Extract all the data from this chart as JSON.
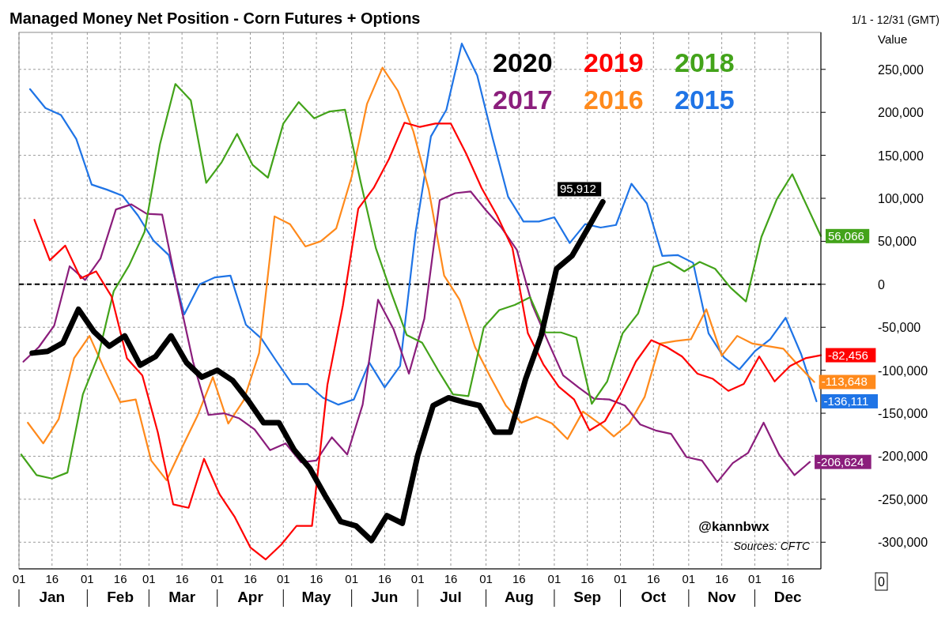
{
  "chart_data": {
    "type": "line",
    "title": "Managed Money Net Position - Corn Futures + Options",
    "ylabel": "Value",
    "annotations": [
      "1/1 - 12/31 (GMT)",
      "@kannbwx",
      "Sources: CFTC",
      "0"
    ],
    "xlim": [
      "--01-01",
      "--12-31"
    ],
    "xticks": [
      {
        "value": "--01-01",
        "label": "01"
      },
      {
        "value": "--01-16",
        "label": "16\nJan"
      },
      {
        "value": "--02-01",
        "label": "01"
      },
      {
        "value": "--02-16",
        "label": "16\nFeb"
      },
      {
        "value": "--03-01",
        "label": "01"
      },
      {
        "value": "--03-16",
        "label": "16\nMar"
      },
      {
        "value": "--04-01",
        "label": "01"
      },
      {
        "value": "--04-16",
        "label": "16\nApr"
      },
      {
        "value": "--05-01",
        "label": "01"
      },
      {
        "value": "--05-16",
        "label": "16\nMay"
      },
      {
        "value": "--06-01",
        "label": "01"
      },
      {
        "value": "--06-16",
        "label": "16\nJun"
      },
      {
        "value": "--07-01",
        "label": "01"
      },
      {
        "value": "--07-16",
        "label": "16\nJul"
      },
      {
        "value": "--08-01",
        "label": "01"
      },
      {
        "value": "--08-16",
        "label": "16\nAug"
      },
      {
        "value": "--09-01",
        "label": "01"
      },
      {
        "value": "--09-16",
        "label": "16\nSep"
      },
      {
        "value": "--10-01",
        "label": "01"
      },
      {
        "value": "--10-16",
        "label": "16\nOct"
      },
      {
        "value": "--11-01",
        "label": "01"
      },
      {
        "value": "--11-16",
        "label": "16\nNov"
      },
      {
        "value": "--12-01",
        "label": "01"
      },
      {
        "value": "--12-16",
        "label": "16\nDec"
      }
    ],
    "ylim": [
      -331000,
      293000
    ],
    "yticks": [
      {
        "value": -300000,
        "label": "-300,000"
      },
      {
        "value": -250000,
        "label": "-250,000"
      },
      {
        "value": -200000,
        "label": "-200,000"
      },
      {
        "value": -150000,
        "label": "-150,000"
      },
      {
        "value": -100000,
        "label": "-100,000"
      },
      {
        "value": -50000,
        "label": "-50,000"
      },
      0,
      {
        "value": 50000,
        "label": "50,000"
      },
      {
        "value": 100000,
        "label": "100,000"
      },
      {
        "value": 150000,
        "label": "150,000"
      },
      {
        "value": 200000,
        "label": "200,000"
      },
      {
        "value": 250000,
        "label": "250,000"
      }
    ],
    "grid": true,
    "legend": "top right",
    "ref_lines": [
      {
        "axis": "y",
        "value": 0,
        "color": "#000000",
        "line_style": "dashed"
      }
    ],
    "series": [
      {
        "name": "2020",
        "color": "#000000",
        "x": [
          "--01-07",
          "--01-14",
          "--01-21",
          "--01-28",
          "--02-04",
          "--02-11",
          "--02-18",
          "--02-25",
          "--03-04",
          "--03-11",
          "--03-18",
          "--03-25",
          "--04-01",
          "--04-08",
          "--04-15",
          "--04-22",
          "--04-29",
          "--05-06",
          "--05-13",
          "--05-20",
          "--05-27",
          "--06-03",
          "--06-10",
          "--06-17",
          "--06-24",
          "--07-01",
          "--07-08",
          "--07-15",
          "--07-22",
          "--07-29",
          "--08-05",
          "--08-12",
          "--08-19",
          "--08-26",
          "--09-02",
          "--09-09",
          "--09-16",
          "--09-23"
        ],
        "values": [
          -80000,
          -78000,
          -68000,
          -29000,
          -55000,
          -72000,
          -60000,
          -94000,
          -84000,
          -60000,
          -91000,
          -108000,
          -100000,
          -112000,
          -135000,
          -161000,
          -161000,
          -193000,
          -214000,
          -246000,
          -276000,
          -281000,
          -298000,
          -269000,
          -278000,
          -199000,
          -141000,
          -132000,
          -137000,
          -141000,
          -172000,
          -172000,
          -110000,
          -60000,
          18000,
          33000,
          64000,
          95912
        ],
        "value_labels": [
          null,
          null,
          null,
          null,
          null,
          null,
          null,
          null,
          null,
          null,
          null,
          null,
          null,
          null,
          null,
          null,
          null,
          null,
          null,
          null,
          null,
          null,
          null,
          null,
          null,
          null,
          null,
          null,
          null,
          null,
          null,
          null,
          null,
          null,
          null,
          null,
          null,
          "95,912"
        ]
      },
      {
        "name": "2019",
        "color": "#ff0000",
        "x": [
          "--01-08",
          "--01-15",
          "--01-22",
          "--01-29",
          "--02-05",
          "--02-12",
          "--02-19",
          "--02-26",
          "--03-05",
          "--03-12",
          "--03-19",
          "--03-26",
          "--04-02",
          "--04-09",
          "--04-16",
          "--04-23",
          "--04-30",
          "--05-07",
          "--05-14",
          "--05-21",
          "--05-28",
          "--06-04",
          "--06-11",
          "--06-18",
          "--06-25",
          "--07-02",
          "--07-09",
          "--07-16",
          "--07-23",
          "--07-30",
          "--08-06",
          "--08-13",
          "--08-20",
          "--08-27",
          "--09-03",
          "--09-10",
          "--09-17",
          "--09-24",
          "--10-01",
          "--10-08",
          "--10-15",
          "--10-22",
          "--10-29",
          "--11-05",
          "--11-12",
          "--11-19",
          "--11-26",
          "--12-03",
          "--12-10",
          "--12-17",
          "--12-24",
          "--12-31"
        ],
        "values": [
          75000,
          28000,
          45000,
          7000,
          15000,
          -14000,
          -86000,
          -106000,
          -172000,
          -256000,
          -260000,
          -203000,
          -244000,
          -271000,
          -306000,
          -320000,
          -303000,
          -281000,
          -281000,
          -117000,
          -25000,
          88000,
          112000,
          146000,
          188000,
          183000,
          187000,
          187000,
          152000,
          112000,
          80000,
          42000,
          -57000,
          -93000,
          -119000,
          -134000,
          -170000,
          -159000,
          -128000,
          -90000,
          -65000,
          -73000,
          -84000,
          -104000,
          -110000,
          -124000,
          -116000,
          -84000,
          -113000,
          -95000,
          -86000,
          -82456
        ],
        "value_labels": [
          null,
          null,
          null,
          null,
          null,
          null,
          null,
          null,
          null,
          null,
          null,
          null,
          null,
          null,
          null,
          null,
          null,
          null,
          null,
          null,
          null,
          null,
          null,
          null,
          null,
          null,
          null,
          null,
          null,
          null,
          null,
          null,
          null,
          null,
          null,
          null,
          null,
          null,
          null,
          null,
          null,
          null,
          null,
          null,
          null,
          null,
          null,
          null,
          null,
          null,
          null,
          "-82,456"
        ]
      },
      {
        "name": "2018",
        "color": "#43a31a",
        "x": [
          "--01-02",
          "--01-09",
          "--01-16",
          "--01-23",
          "--01-30",
          "--02-06",
          "--02-13",
          "--02-20",
          "--02-27",
          "--03-06",
          "--03-13",
          "--03-20",
          "--03-27",
          "--04-03",
          "--04-10",
          "--04-17",
          "--04-24",
          "--05-01",
          "--05-08",
          "--05-15",
          "--05-22",
          "--05-29",
          "--06-05",
          "--06-12",
          "--06-19",
          "--06-26",
          "--07-03",
          "--07-10",
          "--07-17",
          "--07-24",
          "--07-31",
          "--08-07",
          "--08-14",
          "--08-21",
          "--08-28",
          "--09-04",
          "--09-11",
          "--09-18",
          "--09-25",
          "--10-02",
          "--10-09",
          "--10-16",
          "--10-23",
          "--10-30",
          "--11-06",
          "--11-13",
          "--11-20",
          "--11-27",
          "--12-04",
          "--12-11",
          "--12-18",
          "--12-31"
        ],
        "values": [
          -198000,
          -222000,
          -226000,
          -219000,
          -128000,
          -83000,
          -8000,
          22000,
          61000,
          163000,
          233000,
          214000,
          118000,
          142000,
          175000,
          139000,
          124000,
          187000,
          212000,
          193000,
          201000,
          203000,
          120000,
          42000,
          -10000,
          -59000,
          -68000,
          -99000,
          -128000,
          -130000,
          -50000,
          -30000,
          -24000,
          -15000,
          -56000,
          -56000,
          -62000,
          -139000,
          -113000,
          -57000,
          -34000,
          20000,
          26000,
          15000,
          26000,
          18000,
          -4000,
          -20000,
          55000,
          99000,
          128000,
          56066
        ],
        "value_labels": [
          null,
          null,
          null,
          null,
          null,
          null,
          null,
          null,
          null,
          null,
          null,
          null,
          null,
          null,
          null,
          null,
          null,
          null,
          null,
          null,
          null,
          null,
          null,
          null,
          null,
          null,
          null,
          null,
          null,
          null,
          null,
          null,
          null,
          null,
          null,
          null,
          null,
          null,
          null,
          null,
          null,
          null,
          null,
          null,
          null,
          null,
          null,
          null,
          null,
          null,
          null,
          "56,066"
        ]
      },
      {
        "name": "2017",
        "color": "#8b1e7c",
        "x": [
          "--01-03",
          "--01-10",
          "--01-17",
          "--01-24",
          "--01-31",
          "--02-07",
          "--02-14",
          "--02-21",
          "--02-28",
          "--03-07",
          "--03-14",
          "--03-21",
          "--03-28",
          "--04-04",
          "--04-11",
          "--04-18",
          "--04-25",
          "--05-02",
          "--05-09",
          "--05-16",
          "--05-23",
          "--05-30",
          "--06-06",
          "--06-13",
          "--06-20",
          "--06-27",
          "--07-04",
          "--07-11",
          "--07-18",
          "--07-25",
          "--08-01",
          "--08-08",
          "--08-15",
          "--08-22",
          "--08-29",
          "--09-05",
          "--09-12",
          "--09-19",
          "--09-26",
          "--10-03",
          "--10-10",
          "--10-17",
          "--10-24",
          "--10-31",
          "--11-07",
          "--11-14",
          "--11-21",
          "--11-28",
          "--12-05",
          "--12-12",
          "--12-19",
          "--12-26"
        ],
        "values": [
          -90000,
          -73000,
          -48000,
          21000,
          5000,
          30000,
          87000,
          93000,
          82000,
          81000,
          -8000,
          -90000,
          -152000,
          -150000,
          -156000,
          -169000,
          -193000,
          -185000,
          -207000,
          -205000,
          -178000,
          -198000,
          -140000,
          -18000,
          -52000,
          -104000,
          -40000,
          98000,
          106000,
          108000,
          86000,
          66000,
          40000,
          -24000,
          -66000,
          -106000,
          -120000,
          -133000,
          -134000,
          -141000,
          -163000,
          -170000,
          -174000,
          -201000,
          -205000,
          -230000,
          -208000,
          -196000,
          -161000,
          -198000,
          -222000,
          -206624
        ],
        "value_labels": [
          null,
          null,
          null,
          null,
          null,
          null,
          null,
          null,
          null,
          null,
          null,
          null,
          null,
          null,
          null,
          null,
          null,
          null,
          null,
          null,
          null,
          null,
          null,
          null,
          null,
          null,
          null,
          null,
          null,
          null,
          null,
          null,
          null,
          null,
          null,
          null,
          null,
          null,
          null,
          null,
          null,
          null,
          null,
          null,
          null,
          null,
          null,
          null,
          null,
          null,
          null,
          "-206,624"
        ]
      },
      {
        "name": "2016",
        "color": "#ff8a1c",
        "x": [
          "--01-05",
          "--01-12",
          "--01-19",
          "--01-26",
          "--02-02",
          "--02-09",
          "--02-16",
          "--02-23",
          "--03-02",
          "--03-09",
          "--03-16",
          "--03-23",
          "--03-30",
          "--04-06",
          "--04-13",
          "--04-20",
          "--04-27",
          "--05-04",
          "--05-11",
          "--05-18",
          "--05-25",
          "--06-01",
          "--06-08",
          "--06-15",
          "--06-22",
          "--06-29",
          "--07-06",
          "--07-13",
          "--07-20",
          "--07-27",
          "--08-03",
          "--08-10",
          "--08-17",
          "--08-24",
          "--08-31",
          "--09-07",
          "--09-14",
          "--09-21",
          "--09-28",
          "--10-05",
          "--10-12",
          "--10-19",
          "--10-26",
          "--11-02",
          "--11-09",
          "--11-16",
          "--11-23",
          "--11-30",
          "--12-07",
          "--12-14",
          "--12-21",
          "--12-28"
        ],
        "values": [
          -161000,
          -185000,
          -157000,
          -86000,
          -60000,
          -100000,
          -137000,
          -134000,
          -205000,
          -228000,
          -190000,
          -153000,
          -108000,
          -162000,
          -135000,
          -80000,
          79000,
          70000,
          44000,
          50000,
          65000,
          125000,
          210000,
          252000,
          225000,
          178000,
          110000,
          10000,
          -18000,
          -73000,
          -108000,
          -141000,
          -161000,
          -154000,
          -162000,
          -180000,
          -148000,
          -161000,
          -177000,
          -162000,
          -131000,
          -69000,
          -66000,
          -64000,
          -29000,
          -83000,
          -60000,
          -69000,
          -72000,
          -75000,
          -95000,
          -113648
        ],
        "value_labels": [
          null,
          null,
          null,
          null,
          null,
          null,
          null,
          null,
          null,
          null,
          null,
          null,
          null,
          null,
          null,
          null,
          null,
          null,
          null,
          null,
          null,
          null,
          null,
          null,
          null,
          null,
          null,
          null,
          null,
          null,
          null,
          null,
          null,
          null,
          null,
          null,
          null,
          null,
          null,
          null,
          null,
          null,
          null,
          null,
          null,
          null,
          null,
          null,
          null,
          null,
          null,
          "-113,648"
        ]
      },
      {
        "name": "2015",
        "color": "#1f74e6",
        "x": [
          "--01-06",
          "--01-13",
          "--01-20",
          "--01-27",
          "--02-03",
          "--02-10",
          "--02-17",
          "--02-24",
          "--03-03",
          "--03-10",
          "--03-17",
          "--03-24",
          "--03-31",
          "--04-07",
          "--04-14",
          "--04-21",
          "--04-28",
          "--05-05",
          "--05-12",
          "--05-19",
          "--05-26",
          "--06-02",
          "--06-09",
          "--06-16",
          "--06-23",
          "--06-30",
          "--07-07",
          "--07-14",
          "--07-21",
          "--07-28",
          "--08-04",
          "--08-11",
          "--08-18",
          "--08-25",
          "--09-01",
          "--09-08",
          "--09-15",
          "--09-22",
          "--09-29",
          "--10-06",
          "--10-13",
          "--10-20",
          "--10-27",
          "--11-03",
          "--11-10",
          "--11-17",
          "--11-24",
          "--12-01",
          "--12-08",
          "--12-15",
          "--12-22",
          "--12-29"
        ],
        "values": [
          227000,
          205000,
          197000,
          169000,
          116000,
          110000,
          103000,
          80000,
          51000,
          34000,
          -35000,
          0,
          8000,
          10000,
          -47000,
          -63000,
          -90000,
          -116000,
          -116000,
          -132000,
          -140000,
          -134000,
          -91000,
          -120000,
          -95000,
          60000,
          172000,
          203000,
          280000,
          243000,
          170000,
          102000,
          73000,
          73000,
          78000,
          48000,
          70000,
          66000,
          69000,
          117000,
          94000,
          33000,
          34000,
          25000,
          -57000,
          -85000,
          -99000,
          -78000,
          -64000,
          -39000,
          -81000,
          -136111
        ],
        "value_labels": [
          null,
          null,
          null,
          null,
          null,
          null,
          null,
          null,
          null,
          null,
          null,
          null,
          null,
          null,
          null,
          null,
          null,
          null,
          null,
          null,
          null,
          null,
          null,
          null,
          null,
          null,
          null,
          null,
          null,
          null,
          null,
          null,
          null,
          null,
          null,
          null,
          null,
          null,
          null,
          null,
          null,
          null,
          null,
          null,
          null,
          null,
          null,
          null,
          null,
          null,
          null,
          "-136,111"
        ]
      }
    ]
  }
}
